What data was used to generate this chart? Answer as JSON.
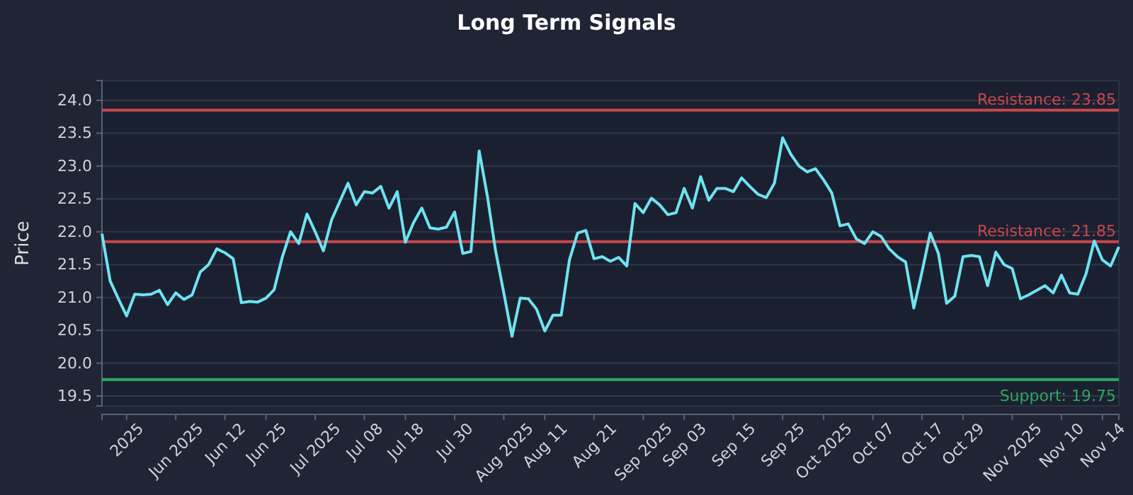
{
  "chart_data": {
    "type": "line",
    "title": "Long Term Signals",
    "ylabel": "Price",
    "categories": [
      null,
      null,
      null,
      "2025",
      null,
      null,
      null,
      null,
      null,
      "Jun 2025",
      null,
      null,
      null,
      null,
      null,
      "Jun 12",
      null,
      null,
      null,
      null,
      "Jun 25",
      null,
      null,
      null,
      null,
      null,
      "Jul 2025",
      null,
      null,
      null,
      null,
      null,
      "Jul 08",
      null,
      null,
      null,
      null,
      "Jul 18",
      null,
      null,
      null,
      null,
      null,
      "Jul 30",
      null,
      null,
      null,
      null,
      null,
      "Aug 2025",
      null,
      null,
      null,
      null,
      "Aug 11",
      null,
      null,
      null,
      null,
      null,
      "Aug 21",
      null,
      null,
      null,
      null,
      null,
      "Sep 2025",
      null,
      null,
      null,
      null,
      "Sep 03",
      null,
      null,
      null,
      null,
      null,
      "Sep 15",
      null,
      null,
      null,
      null,
      null,
      "Sep 25",
      null,
      null,
      null,
      null,
      "Oct 2025",
      null,
      null,
      null,
      null,
      null,
      "Oct 07",
      null,
      null,
      null,
      null,
      null,
      "Oct 17",
      null,
      null,
      null,
      null,
      "Oct 29",
      null,
      null,
      null,
      null,
      null,
      "Nov 2025",
      null,
      null,
      null,
      null,
      null,
      "Nov 10",
      null,
      null,
      null,
      null,
      "Nov 14",
      null,
      null
    ],
    "series": [
      {
        "color": "#6fe3f0",
        "values": [
          21.97,
          21.25,
          20.98,
          20.72,
          21.05,
          21.04,
          21.05,
          21.11,
          20.89,
          21.07,
          20.97,
          21.04,
          21.39,
          21.5,
          21.74,
          21.68,
          21.59,
          20.92,
          20.94,
          20.93,
          20.99,
          21.12,
          21.62,
          22.0,
          21.82,
          22.27,
          22.0,
          21.71,
          22.18,
          22.46,
          22.74,
          22.41,
          22.61,
          22.59,
          22.69,
          22.36,
          22.61,
          21.84,
          22.14,
          22.36,
          22.06,
          22.04,
          22.07,
          22.3,
          21.67,
          21.7,
          23.23,
          22.54,
          21.71,
          21.07,
          20.41,
          20.99,
          20.98,
          20.82,
          20.49,
          20.73,
          20.73,
          21.57,
          21.98,
          22.02,
          21.59,
          21.62,
          21.55,
          21.61,
          21.48,
          22.43,
          22.29,
          22.51,
          22.41,
          22.26,
          22.29,
          22.66,
          22.36,
          22.84,
          22.48,
          22.66,
          22.66,
          22.61,
          22.82,
          22.69,
          22.57,
          22.52,
          22.74,
          23.43,
          23.18,
          23.0,
          22.91,
          22.96,
          22.79,
          22.59,
          22.09,
          22.12,
          21.89,
          21.82,
          22.0,
          21.93,
          21.74,
          21.62,
          21.54,
          20.84,
          21.39,
          21.98,
          21.67,
          20.91,
          21.02,
          21.62,
          21.64,
          21.62,
          21.18,
          21.69,
          21.5,
          21.44,
          20.98,
          21.04,
          21.11,
          21.18,
          21.07,
          21.34,
          21.07,
          21.05,
          21.36,
          21.86,
          21.57,
          21.48,
          21.77
        ]
      }
    ],
    "ylim": [
      19.35,
      24.3
    ],
    "yticks": [
      19.5,
      {
        "value": 20,
        "label": "20.0"
      },
      20.5,
      {
        "value": 21,
        "label": "21.0"
      },
      21.5,
      {
        "value": 22,
        "label": "22.0"
      },
      22.5,
      {
        "value": 23,
        "label": "23.0"
      },
      23.5,
      {
        "value": 24,
        "label": "24.0"
      }
    ],
    "grid": "y",
    "line_style": "solid",
    "marker": "none",
    "ref_lines": [
      {
        "axis": "y",
        "value": 23.85,
        "label": "Resistance: 23.85",
        "color": "#c8474c"
      },
      {
        "axis": "y",
        "value": 21.85,
        "label": "Resistance: 21.85",
        "color": "#c8474c"
      },
      {
        "axis": "y",
        "value": 19.75,
        "label": "Support: 19.75",
        "color": "#2fa85c"
      }
    ]
  }
}
